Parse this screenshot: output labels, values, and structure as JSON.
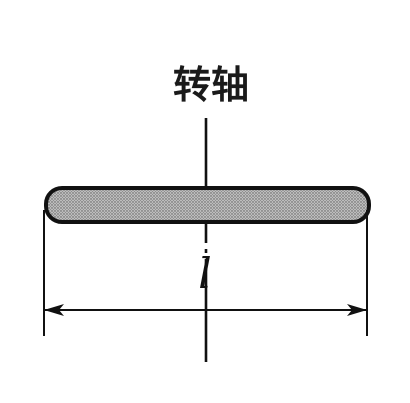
{
  "diagram": {
    "axis_label": "转轴",
    "length_label": "l"
  }
}
